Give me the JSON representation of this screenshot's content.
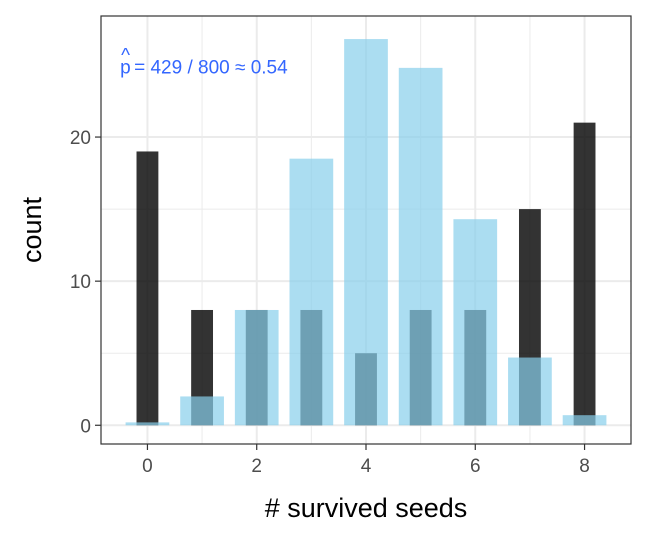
{
  "chart_data": {
    "type": "bar",
    "xlabel": "# survived seeds",
    "ylabel": "count",
    "xlim": [
      -0.85,
      8.85
    ],
    "ylim": [
      -1.3,
      28.4
    ],
    "x_ticks": [
      0,
      2,
      4,
      6,
      8
    ],
    "y_ticks": [
      0,
      10,
      20
    ],
    "grid": true,
    "legend": "none",
    "x": [
      0,
      1,
      2,
      3,
      4,
      5,
      6,
      7,
      8
    ],
    "series": [
      {
        "values": [
          19,
          8,
          8,
          8,
          5,
          8,
          8,
          15,
          21
        ]
      },
      {
        "values": [
          0.2,
          2,
          8,
          18.5,
          26.8,
          24.8,
          14.3,
          4.7,
          0.7
        ]
      }
    ],
    "annotation": {
      "p_hat_symbol": "p",
      "hat_mark": "^",
      "text": "= 429 / 800 ≈ 0.54"
    }
  },
  "colors": {
    "observed": "#000000",
    "expected": "#87CEEB",
    "annotation": "#3366FF",
    "grid": "#EBEBEB",
    "panel_border": "#333333"
  }
}
